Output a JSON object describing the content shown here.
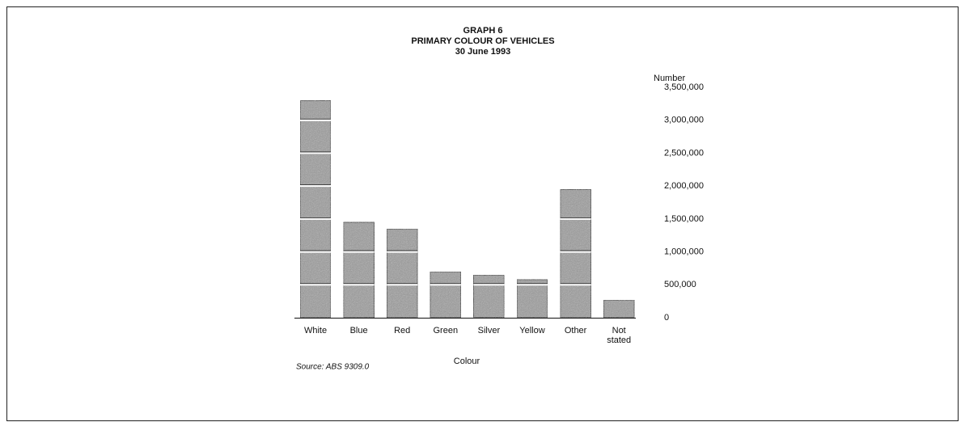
{
  "chart_data": {
    "type": "bar",
    "title": [
      "GRAPH 6",
      "PRIMARY COLOUR OF VEHICLES",
      "30 June 1993"
    ],
    "y_axis_label": "Number",
    "x_axis_label": "Colour",
    "source": "Source: ABS 9309.0",
    "categories": [
      "White",
      "Blue",
      "Red",
      "Green",
      "Silver",
      "Yellow",
      "Other",
      "Not stated"
    ],
    "values": [
      3300000,
      1450000,
      1350000,
      700000,
      650000,
      580000,
      1950000,
      270000
    ],
    "color": "#9a9a9a",
    "ylim": [
      0,
      3500000
    ],
    "yticks": [
      {
        "value": 0,
        "label": "0"
      },
      {
        "value": 500000,
        "label": "500,000"
      },
      {
        "value": 1000000,
        "label": "1,000,000"
      },
      {
        "value": 1500000,
        "label": "1,500,000"
      },
      {
        "value": 2000000,
        "label": "2,000,000"
      },
      {
        "value": 2500000,
        "label": "2,500,000"
      },
      {
        "value": 3000000,
        "label": "3,000,000"
      },
      {
        "value": 3500000,
        "label": "3,500,000"
      }
    ]
  }
}
